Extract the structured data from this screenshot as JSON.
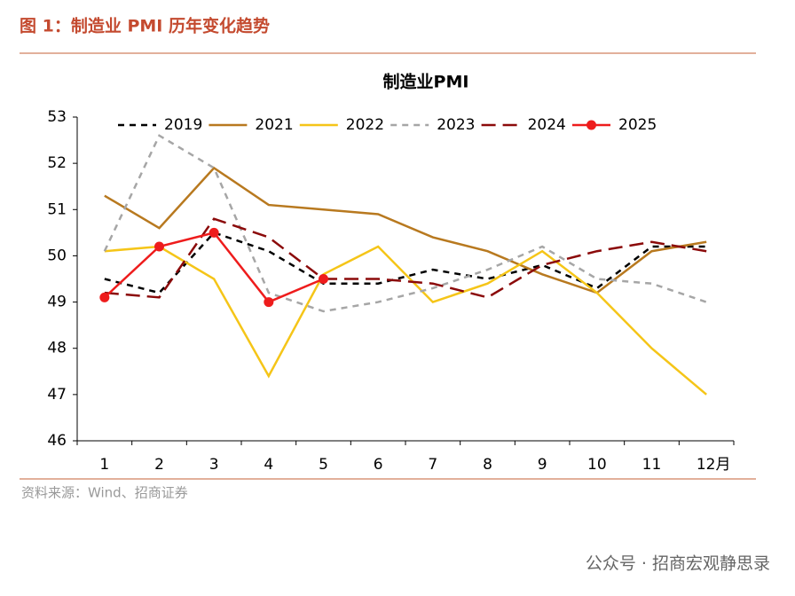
{
  "header": {
    "title": "图 1：制造业 PMI 历年变化趋势"
  },
  "chart_data": {
    "type": "line",
    "title": "制造业PMI",
    "categories": [
      "1",
      "2",
      "3",
      "4",
      "5",
      "6",
      "7",
      "8",
      "9",
      "10",
      "11",
      "12月"
    ],
    "ylim": [
      46,
      53
    ],
    "yticks": [
      46,
      47,
      48,
      49,
      50,
      51,
      52,
      53
    ],
    "series": [
      {
        "name": "2019",
        "color": "#000000",
        "style": "dashed",
        "values": [
          49.5,
          49.2,
          50.5,
          50.1,
          49.4,
          49.4,
          49.7,
          49.5,
          49.8,
          49.3,
          50.2,
          50.2
        ]
      },
      {
        "name": "2021",
        "color": "#b8791f",
        "style": "solid",
        "values": [
          51.3,
          50.6,
          51.9,
          51.1,
          51.0,
          50.9,
          50.4,
          50.1,
          49.6,
          49.2,
          50.1,
          50.3
        ]
      },
      {
        "name": "2022",
        "color": "#f5c518",
        "style": "solid",
        "values": [
          50.1,
          50.2,
          49.5,
          47.4,
          49.6,
          50.2,
          49.0,
          49.4,
          50.1,
          49.2,
          48.0,
          47.0
        ]
      },
      {
        "name": "2023",
        "color": "#a6a6a6",
        "style": "dashed",
        "values": [
          50.1,
          52.6,
          51.9,
          49.2,
          48.8,
          49.0,
          49.3,
          49.7,
          50.2,
          49.5,
          49.4,
          49.0
        ]
      },
      {
        "name": "2024",
        "color": "#8b0a0a",
        "style": "long-dashed",
        "values": [
          49.2,
          49.1,
          50.8,
          50.4,
          49.5,
          49.5,
          49.4,
          49.1,
          49.8,
          50.1,
          50.3,
          50.1
        ]
      },
      {
        "name": "2025",
        "color": "#ee1c1c",
        "style": "solid",
        "marker": true,
        "values": [
          49.1,
          50.2,
          50.5,
          49.0,
          49.5,
          null,
          null,
          null,
          null,
          null,
          null,
          null
        ]
      }
    ]
  },
  "source": "资料来源：Wind、招商证券",
  "footer": "公众号 · 招商宏观静思录"
}
